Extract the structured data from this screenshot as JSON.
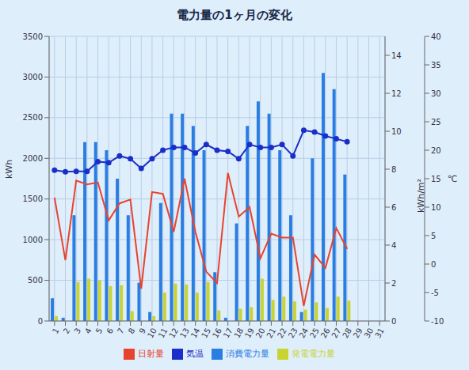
{
  "chart_data": {
    "type": "bar",
    "title": "電力量の1ヶ月の変化",
    "y_label": "kWh",
    "y2_label": "kWh/m²",
    "y3_label": "℃",
    "categories": [
      "1",
      "2",
      "3",
      "4",
      "5",
      "6",
      "7",
      "8",
      "9",
      "10",
      "11",
      "12",
      "13",
      "14",
      "15",
      "16",
      "17",
      "18",
      "19",
      "20",
      "21",
      "22",
      "23",
      "24",
      "25",
      "26",
      "27",
      "28",
      "29",
      "30",
      "31"
    ],
    "ylim": [
      0,
      3500
    ],
    "yticks": [
      0,
      500,
      1000,
      1500,
      2000,
      2500,
      3000,
      3500
    ],
    "y2lim": [
      0,
      15
    ],
    "y2ticks": [
      0,
      2,
      4,
      6,
      8,
      10,
      12,
      14
    ],
    "y3lim": [
      -10,
      40
    ],
    "y3ticks": [
      -10,
      -5,
      0,
      5,
      10,
      15,
      20,
      25,
      30,
      35,
      40
    ],
    "grid": true,
    "legend": "bottom",
    "series": [
      {
        "name": "消費電力量",
        "type": "bar",
        "color": "#2a7de1",
        "values": [
          280,
          40,
          1300,
          2200,
          2200,
          2100,
          1750,
          1300,
          470,
          110,
          1450,
          2550,
          2550,
          2400,
          2100,
          600,
          40,
          1200,
          2400,
          2700,
          2550,
          2100,
          1300,
          110,
          2000,
          3050,
          2850,
          1800,
          null,
          null,
          null
        ]
      },
      {
        "name": "発電電力量",
        "type": "bar",
        "color": "#c8d431",
        "values": [
          60,
          0,
          480,
          520,
          500,
          430,
          440,
          120,
          0,
          60,
          350,
          460,
          450,
          350,
          480,
          130,
          0,
          150,
          170,
          520,
          260,
          300,
          240,
          140,
          230,
          160,
          300,
          250,
          null,
          null,
          null
        ]
      },
      {
        "name": "日射量",
        "type": "line",
        "axis": "y2",
        "color": "#e8432e",
        "marker": "none",
        "values": [
          6.5,
          3.2,
          7.4,
          7.2,
          7.3,
          5.3,
          6.2,
          6.4,
          1.7,
          6.8,
          6.7,
          4.7,
          7.5,
          4.7,
          2.6,
          2.0,
          7.8,
          5.5,
          6.0,
          3.3,
          4.6,
          4.4,
          4.4,
          0.8,
          3.5,
          2.8,
          4.9,
          3.8,
          null,
          null,
          null
        ]
      },
      {
        "name": "気温",
        "type": "line",
        "axis": "y3",
        "color": "#1a2fc9",
        "marker": "circle",
        "values": [
          16.5,
          16.2,
          16.3,
          16.3,
          18.0,
          17.8,
          19.0,
          18.5,
          16.8,
          18.5,
          20.0,
          20.5,
          20.5,
          19.5,
          21.0,
          20.0,
          19.8,
          18.5,
          21.0,
          20.5,
          20.5,
          21.0,
          19.0,
          23.5,
          23.2,
          22.5,
          22.0,
          21.5,
          null,
          null,
          null
        ]
      }
    ]
  }
}
